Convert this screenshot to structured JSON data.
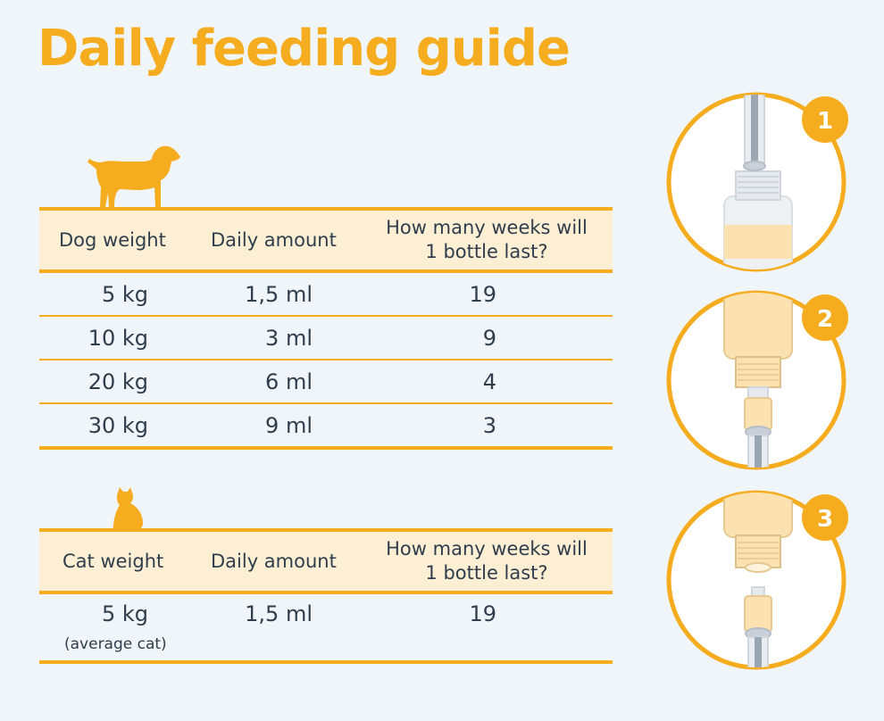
{
  "title": "Daily feeding guide",
  "dog_table": {
    "headers": [
      "Dog weight",
      "Daily amount",
      "How many weeks will 1 bottle last?"
    ],
    "rows": [
      {
        "weight": "5 kg",
        "amount": "1,5 ml",
        "weeks": "19"
      },
      {
        "weight": "10 kg",
        "amount": "3 ml",
        "weeks": "9"
      },
      {
        "weight": "20 kg",
        "amount": "6 ml",
        "weeks": "4"
      },
      {
        "weight": "30 kg",
        "amount": "9 ml",
        "weeks": "3"
      }
    ]
  },
  "cat_table": {
    "headers": [
      "Cat weight",
      "Daily amount",
      "How many weeks will 1 bottle last?"
    ],
    "rows": [
      {
        "weight": "5 kg",
        "note": "(average cat)",
        "amount": "1,5 ml",
        "weeks": "19"
      }
    ]
  },
  "steps": [
    "1",
    "2",
    "3"
  ],
  "colors": {
    "accent": "#f5ac1e",
    "header_bg": "#fdefd4",
    "background": "#eff5f8",
    "text": "#2f3d4c"
  }
}
